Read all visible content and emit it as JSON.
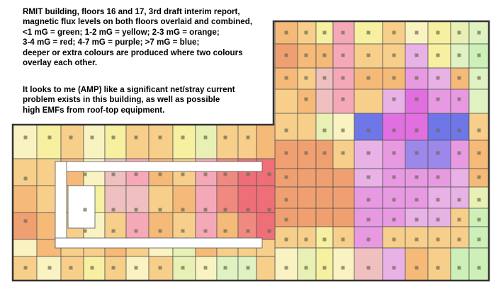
{
  "description": {
    "legend_lines": [
      "RMIT building, floors 16 and 17, 3rd draft interim report,",
      "magnetic flux levels on both floors overlaid and combined,",
      "<1 mG = green;   1-2 mG = yellow;   2-3 mG = orange;",
      "3-4 mG = red;       4-7 mG = purple;    >7 mG = blue;",
      "deeper or extra colours are produced where two colours",
      "overlay each other."
    ],
    "opinion_lines": [
      "It looks to me (AMP) like a significant net/stray current",
      "problem exists in this building, as well as possible",
      "high EMFs from roof-top equipment."
    ]
  },
  "colors": {
    "green": "#cdf0b8",
    "yellow": "#f6f0a0",
    "orange": "#f5b978",
    "red": "#f08a80",
    "purple": "#e79ae2",
    "blue": "#6f76e8",
    "background": "#ffffff",
    "outline": "#333333",
    "marker": "#6e6a52"
  }
}
